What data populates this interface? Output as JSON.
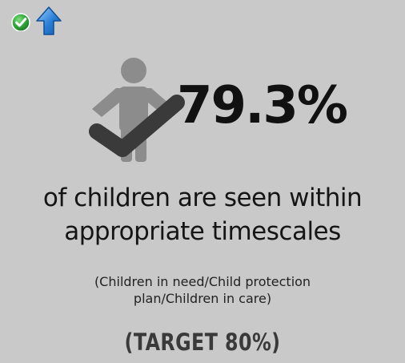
{
  "status": {
    "check_icon": "green-check-circle",
    "trend_icon": "blue-up-arrow"
  },
  "kpi": {
    "value": "79.3%",
    "headline_line1": "of children are seen within",
    "headline_line2": "appropriate timescales",
    "note_line1": "(Children in need/Child protection",
    "note_line2": "plan/Children in care)",
    "target": "(TARGET 80%)"
  },
  "colors": {
    "background": "#c9c9c9",
    "check_green": "#2fa83a",
    "arrow_blue": "#2a7fd6",
    "child_figure": "#8c8c8c",
    "checkmark": "#3a3a3a",
    "value_text": "#111111"
  }
}
